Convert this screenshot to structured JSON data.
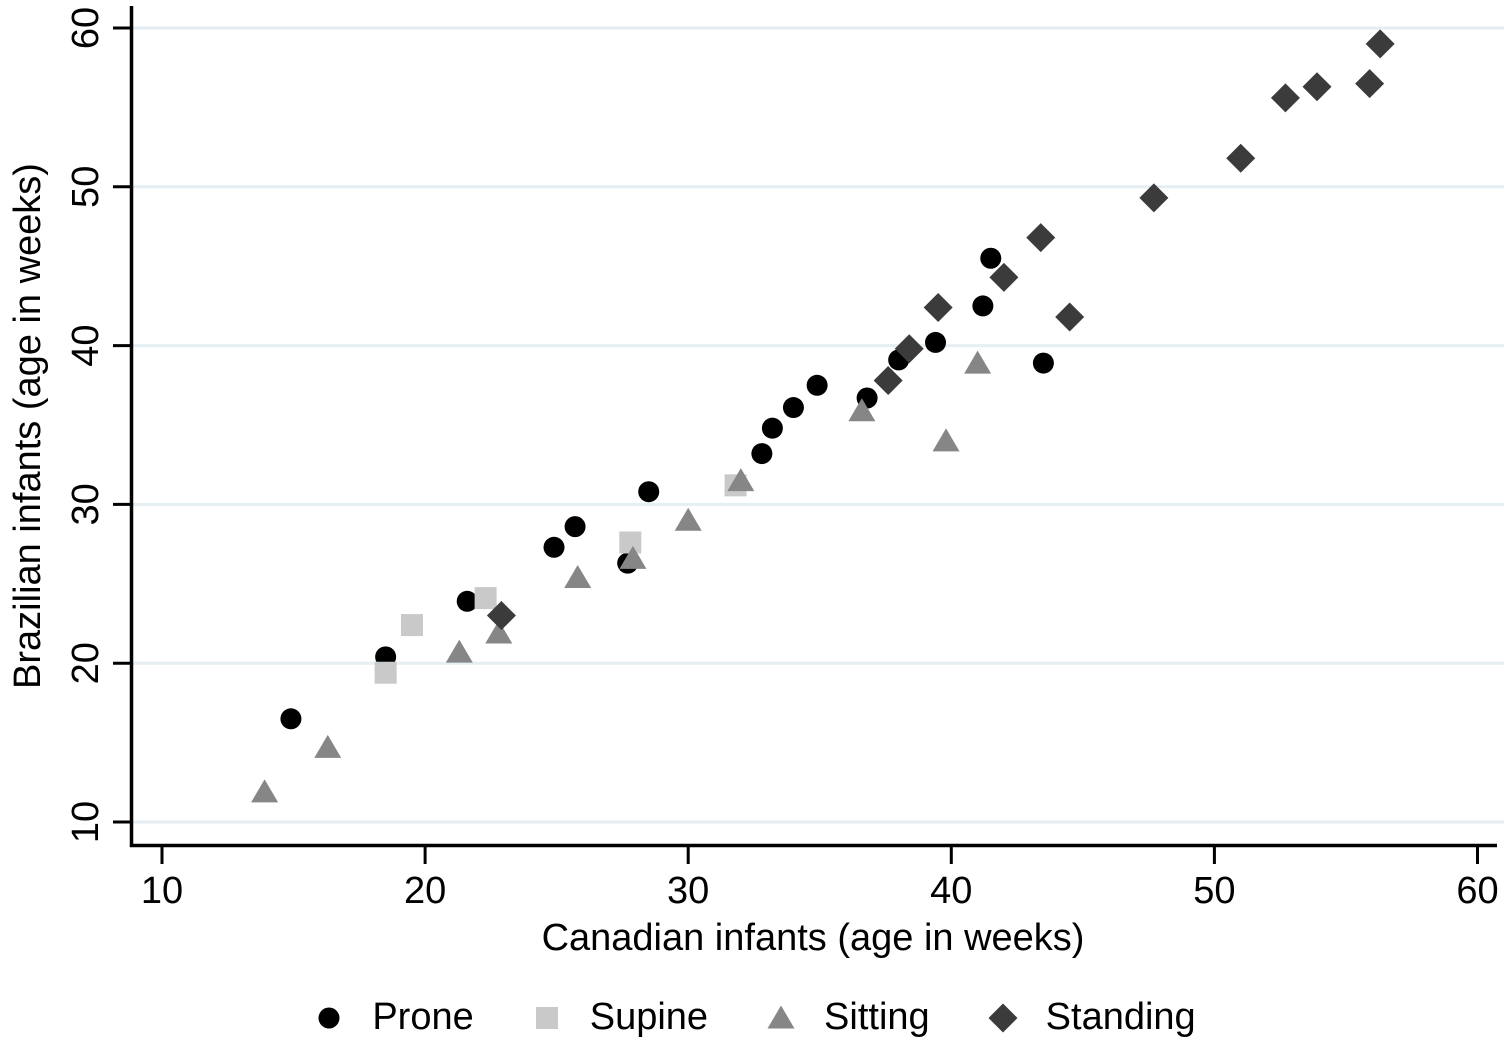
{
  "chart_data": {
    "type": "scatter",
    "title": "",
    "xlabel": "Canadian infants (age in weeks)",
    "ylabel": "Brazilian infants (age in weeks)",
    "xticks": [
      10,
      20,
      30,
      40,
      50,
      60
    ],
    "yticks": [
      10,
      20,
      30,
      40,
      50,
      60
    ],
    "xlim": [
      8.8,
      60.8
    ],
    "ylim": [
      8.4,
      61.4
    ],
    "grid": "horizontal-gridlines-only",
    "grid_color": "#e4eef3",
    "axis_color": "#000000",
    "background_color": "#ffffff",
    "legend_position": "bottom-center",
    "series": [
      {
        "name": "Prone",
        "marker": "circle",
        "color": "#000000",
        "points": [
          [
            14.9,
            16.5
          ],
          [
            18.5,
            20.4
          ],
          [
            21.6,
            23.9
          ],
          [
            24.9,
            27.3
          ],
          [
            25.7,
            28.6
          ],
          [
            27.7,
            26.3
          ],
          [
            28.5,
            30.8
          ],
          [
            32.8,
            33.2
          ],
          [
            33.2,
            34.8
          ],
          [
            34.0,
            36.1
          ],
          [
            34.9,
            37.5
          ],
          [
            36.8,
            36.7
          ],
          [
            38.0,
            39.1
          ],
          [
            39.4,
            40.2
          ],
          [
            41.2,
            42.5
          ],
          [
            41.5,
            45.5
          ],
          [
            43.5,
            38.9
          ]
        ]
      },
      {
        "name": "Supine",
        "marker": "square",
        "color": "#c9c9c9",
        "points": [
          [
            18.5,
            19.4
          ],
          [
            19.5,
            22.4
          ],
          [
            22.3,
            24.1
          ],
          [
            27.8,
            27.6
          ],
          [
            31.8,
            31.2
          ]
        ]
      },
      {
        "name": "Sitting",
        "marker": "triangle",
        "color": "#868686",
        "points": [
          [
            13.9,
            11.9
          ],
          [
            16.3,
            14.7
          ],
          [
            21.3,
            20.7
          ],
          [
            22.8,
            21.9
          ],
          [
            25.8,
            25.4
          ],
          [
            27.9,
            26.6
          ],
          [
            30.0,
            29.0
          ],
          [
            32.0,
            31.5
          ],
          [
            36.6,
            35.9
          ],
          [
            39.8,
            34.0
          ],
          [
            41.0,
            38.9
          ]
        ]
      },
      {
        "name": "Standing",
        "marker": "diamond",
        "color": "#3b3b3b",
        "points": [
          [
            22.9,
            23.0
          ],
          [
            37.6,
            37.8
          ],
          [
            38.4,
            39.8
          ],
          [
            39.5,
            42.4
          ],
          [
            42.0,
            44.3
          ],
          [
            43.4,
            46.8
          ],
          [
            44.5,
            41.8
          ],
          [
            47.7,
            49.3
          ],
          [
            51.0,
            51.8
          ],
          [
            52.7,
            55.6
          ],
          [
            53.9,
            56.3
          ],
          [
            55.9,
            56.5
          ],
          [
            56.3,
            59.0
          ]
        ]
      }
    ]
  }
}
